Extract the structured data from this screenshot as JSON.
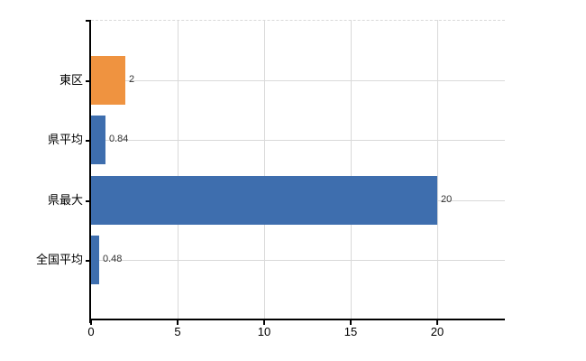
{
  "chart_data": {
    "type": "bar",
    "orientation": "horizontal",
    "title": "",
    "xlabel": "",
    "ylabel": "",
    "categories": [
      "東区",
      "県平均",
      "県最大",
      "全国平均"
    ],
    "values": [
      2,
      0.84,
      20,
      0.48
    ],
    "value_labels": [
      "2",
      "0.84",
      "20",
      "0.48"
    ],
    "bar_colors": [
      "#EF9340",
      "#3E6EAE",
      "#3E6EAE",
      "#3E6EAE"
    ],
    "x_ticks": [
      0,
      5,
      10,
      15,
      20
    ],
    "x_tick_labels": [
      "0",
      "5",
      "10",
      "15",
      "20"
    ],
    "xlim": [
      0,
      23.9
    ],
    "grid": true,
    "legend": false
  },
  "colors": {
    "orange_bar": "#EF9340",
    "blue_bar": "#3E6EAE",
    "gridline": "#D9D9D9",
    "axis": "#000000",
    "background": "#FFFFFF",
    "value_label_text": "#333333",
    "tick_label_text": "#000000"
  }
}
